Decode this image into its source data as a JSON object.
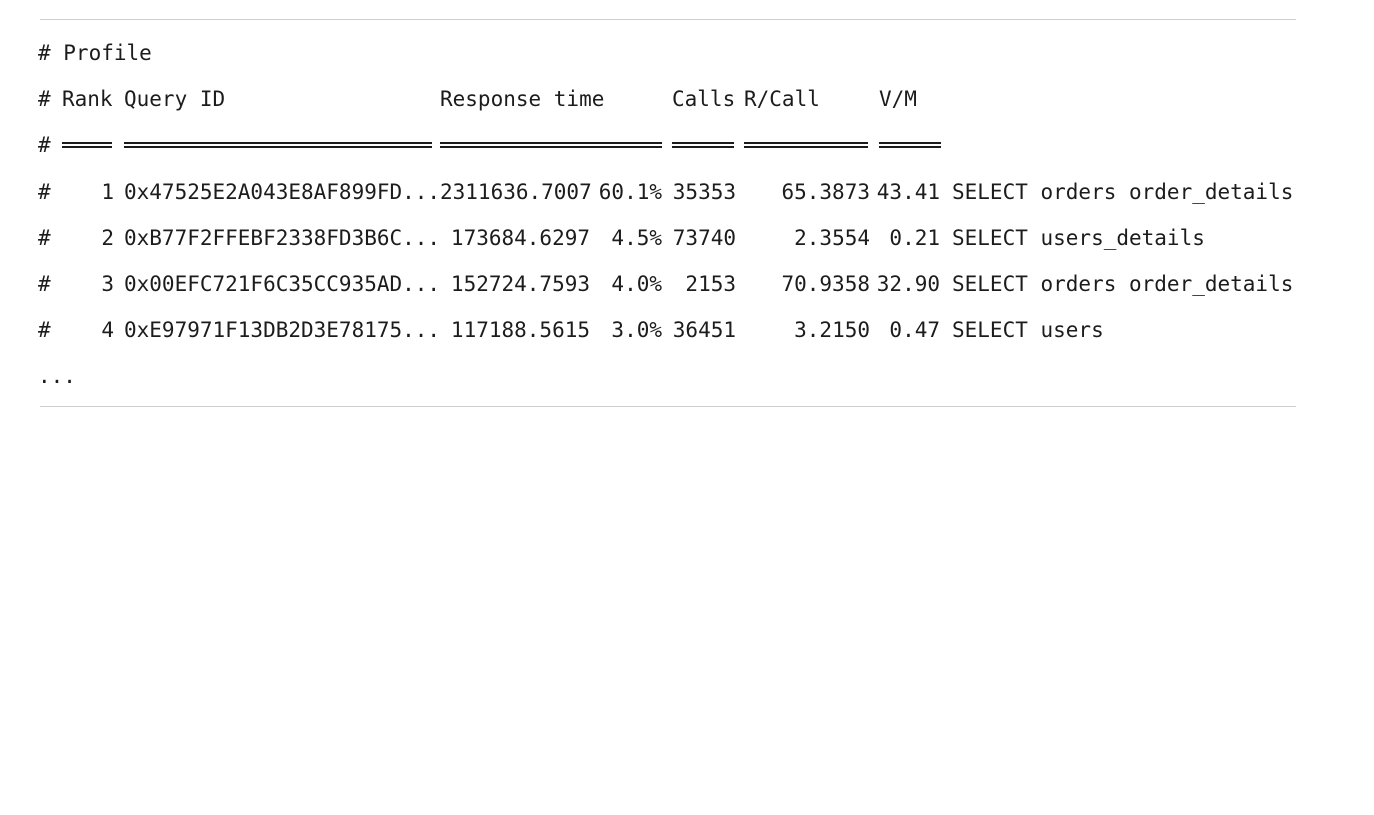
{
  "heading": "# Profile",
  "header": {
    "hash": "#",
    "rank": "Rank",
    "query_id": "Query ID",
    "response_time": "Response time",
    "calls": "Calls",
    "r_call": "R/Call",
    "vm": "V/M"
  },
  "separator_hash": "#",
  "rows": [
    {
      "hash": "#",
      "rank": "1",
      "query_id": "0x47525E2A043E8AF899FD...",
      "response_time": "2311636.7007",
      "percent": "60.1%",
      "calls": "35353",
      "r_call": "65.3873",
      "vm": "43.41",
      "item": "SELECT orders order_details"
    },
    {
      "hash": "#",
      "rank": "2",
      "query_id": "0xB77F2FFEBF2338FD3B6C...",
      "response_time": "173684.6297",
      "percent": "4.5%",
      "calls": "73740",
      "r_call": "2.3554",
      "vm": "0.21",
      "item": "SELECT users_details"
    },
    {
      "hash": "#",
      "rank": "3",
      "query_id": "0x00EFC721F6C35CC935AD...",
      "response_time": "152724.7593",
      "percent": "4.0%",
      "calls": "2153",
      "r_call": "70.9358",
      "vm": "32.90",
      "item": "SELECT orders order_details"
    },
    {
      "hash": "#",
      "rank": "4",
      "query_id": "0xE97971F13DB2D3E78175...",
      "response_time": "117188.5615",
      "percent": "3.0%",
      "calls": "36451",
      "r_call": "3.2150",
      "vm": "0.47",
      "item": "SELECT users"
    }
  ],
  "ellipsis": "..."
}
